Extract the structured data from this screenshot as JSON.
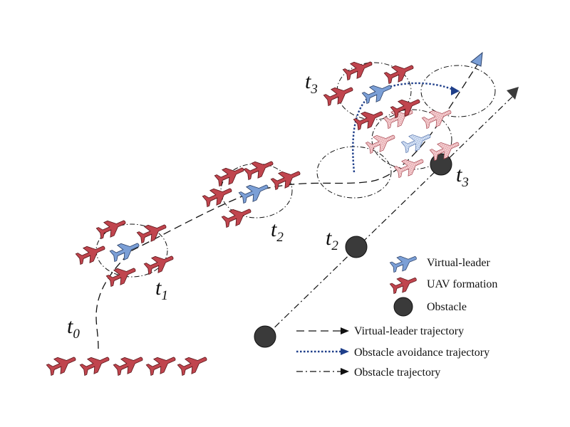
{
  "time_labels": {
    "t0": {
      "base": "t",
      "sub": "0"
    },
    "t1": {
      "base": "t",
      "sub": "1"
    },
    "t2": {
      "base": "t",
      "sub": "2"
    },
    "t3_formation": {
      "base": "t",
      "sub": "3"
    },
    "t2_obstacle": {
      "base": "t",
      "sub": "2"
    },
    "t3_obstacle": {
      "base": "t",
      "sub": "3"
    }
  },
  "legend": {
    "virtual_leader": "Virtual-leader",
    "uav_formation": "UAV formation",
    "obstacle": "Obstacle",
    "leader_trajectory": "Virtual-leader trajectory",
    "avoidance_trajectory": "Obstacle avoidance trajectory",
    "obstacle_trajectory": "Obstacle trajectory"
  },
  "colors": {
    "uav": "#c0454e",
    "uav_outline": "#5a1418",
    "leader": "#7b9fd6",
    "leader_outline": "#2a3f66",
    "ghost_uav": "#f0b8bd",
    "ghost_leader": "#bdd0ef",
    "obstacle": "#3a3a3a",
    "avoidance_line": "#1f3f8a",
    "line": "#111111"
  },
  "icons": {
    "uav": "airplane-icon",
    "obstacle": "circle-icon"
  }
}
